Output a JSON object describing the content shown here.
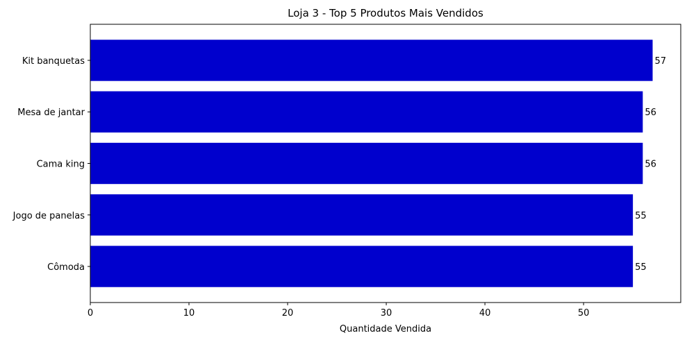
{
  "chart_data": {
    "type": "bar",
    "orientation": "horizontal",
    "title": "Loja 3 - Top 5 Produtos Mais Vendidos",
    "xlabel": "Quantidade Vendida",
    "ylabel": "",
    "categories": [
      "Kit banquetas",
      "Mesa de jantar",
      "Cama king",
      "Jogo de panelas",
      "Cômoda"
    ],
    "values": [
      57,
      56,
      56,
      55,
      55
    ],
    "data_labels": [
      "57",
      "56",
      "56",
      "55",
      "55"
    ],
    "xlim": [
      0,
      59.85
    ],
    "xticks": [
      0,
      10,
      20,
      30,
      40,
      50
    ],
    "xtick_labels": [
      "0",
      "10",
      "20",
      "30",
      "40",
      "50"
    ],
    "bar_color": "#0000CD",
    "grid": false,
    "legend": "none"
  }
}
